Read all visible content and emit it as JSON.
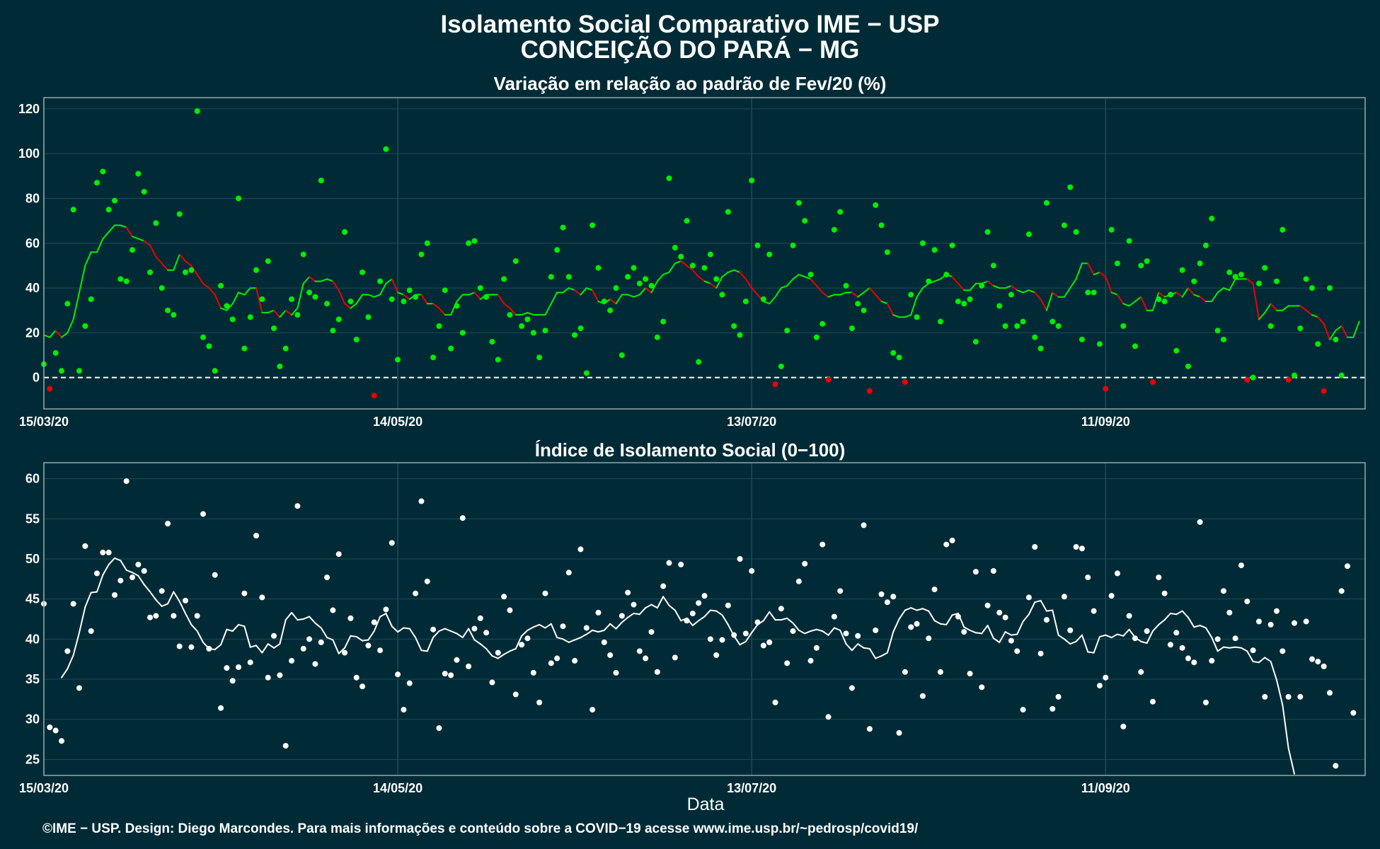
{
  "title": {
    "line1": "Isolamento Social Comparativo IME − USP",
    "line2": "CONCEIÇÃO DO PARÁ − MG"
  },
  "caption": "©IME − USP. Design: Diego Marcondes. Para mais informações e conteúdo sobre a COVID−19 acesse www.ime.usp.br/~pedrosp/covid19/",
  "colors": {
    "background": "#002b36",
    "grid": "#1e4a55",
    "panel_border": "#9aa6a9",
    "above": "#00ee00",
    "below": "#ee0000",
    "index": "#ffffff"
  },
  "chart_data": [
    {
      "type": "scatter",
      "title": "Variação em relação ao padrão de Fev/20 (%)",
      "xlabel": "",
      "ylabel": "",
      "x_ticks": [
        "15/03/20",
        "14/05/20",
        "13/07/20",
        "11/09/20"
      ],
      "x_tick_days": [
        0,
        60,
        120,
        180
      ],
      "x_range_days": [
        0,
        224
      ],
      "ylim": [
        -14,
        125
      ],
      "y_ticks": [
        0,
        20,
        40,
        60,
        80,
        100,
        120
      ],
      "grid": true,
      "reference_line": 0,
      "legend": "none",
      "series": [
        {
          "style": "points, green when positive and red when negative",
          "values": [
            6,
            -5,
            11,
            3,
            33,
            75,
            3,
            23,
            35,
            87,
            92,
            75,
            79,
            44,
            43,
            57,
            91,
            83,
            47,
            69,
            40,
            30,
            28,
            73,
            47,
            48,
            119,
            18,
            14,
            3,
            41,
            32,
            26,
            80,
            13,
            27,
            48,
            35,
            52,
            22,
            5,
            13,
            35,
            28,
            55,
            38,
            36,
            88,
            33,
            21,
            26,
            65,
            34,
            17,
            47,
            27,
            -8,
            43,
            102,
            35,
            8,
            34,
            39,
            36,
            55,
            60,
            9,
            23,
            39,
            13,
            32,
            20,
            60,
            61,
            40,
            36,
            16,
            8,
            44,
            28,
            52,
            23,
            26,
            20,
            9,
            21,
            45,
            57,
            67,
            45,
            19,
            22,
            2,
            68,
            49,
            34,
            30,
            40,
            10,
            45,
            49,
            42,
            44,
            41,
            18,
            25,
            89,
            58,
            54,
            70,
            50,
            7,
            49,
            55,
            44,
            37,
            74,
            23,
            19,
            34,
            88,
            59,
            35,
            55,
            -3,
            5,
            21,
            59,
            78,
            70,
            46,
            18,
            24,
            -1,
            66,
            74,
            41,
            22,
            33,
            30,
            -6,
            77,
            68,
            56,
            11,
            9,
            -2,
            37,
            27,
            60,
            43,
            57,
            25,
            46,
            59,
            34,
            33,
            35,
            16,
            41,
            65,
            50,
            32,
            23,
            37,
            23,
            25,
            64,
            18,
            13,
            78,
            25,
            23,
            68,
            85,
            65,
            17,
            38,
            38,
            15,
            -5,
            66,
            51,
            23,
            61,
            14,
            50,
            52,
            -2,
            35,
            34,
            37,
            12,
            48,
            5,
            43,
            51,
            59,
            71,
            21,
            17,
            47,
            45,
            46,
            -1,
            0,
            42,
            49,
            23,
            43,
            66,
            -1,
            1,
            22,
            44,
            40,
            15,
            -6,
            40,
            17,
            1
          ]
        },
        {
          "style": "7-day moving average line",
          "values": [
            19,
            18,
            21,
            18,
            20,
            26,
            38,
            50,
            56,
            56,
            62,
            65,
            68,
            68,
            67,
            63,
            62,
            61,
            59,
            54,
            51,
            48,
            48,
            55,
            52,
            50,
            46,
            42,
            40,
            37,
            31,
            30,
            33,
            38,
            37,
            40,
            40,
            29,
            29,
            30,
            27,
            30,
            28,
            31,
            42,
            45,
            43,
            43,
            44,
            43,
            39,
            33,
            31,
            33,
            37,
            37,
            36,
            37,
            42,
            44,
            38,
            37,
            35,
            37,
            37,
            33,
            33,
            31,
            28,
            28,
            34,
            37,
            37,
            38,
            35,
            37,
            37,
            37,
            33,
            31,
            28,
            28,
            29,
            28,
            28,
            28,
            33,
            38,
            38,
            40,
            39,
            37,
            40,
            39,
            34,
            33,
            35,
            33,
            37,
            37,
            36,
            37,
            40,
            38,
            43,
            46,
            47,
            51,
            52,
            50,
            48,
            45,
            43,
            42,
            40,
            45,
            47,
            48,
            47,
            44,
            40,
            37,
            34,
            33,
            36,
            40,
            41,
            44,
            46,
            45,
            44,
            41,
            38,
            36,
            37,
            37,
            38,
            38,
            36,
            38,
            40,
            37,
            34,
            33,
            28,
            27,
            27,
            28,
            36,
            40,
            42,
            43,
            44,
            46,
            45,
            42,
            39,
            39,
            42,
            42,
            43,
            41,
            40,
            40,
            41,
            39,
            38,
            39,
            38,
            35,
            30,
            38,
            36,
            36,
            40,
            44,
            51,
            51,
            46,
            47,
            45,
            38,
            37,
            33,
            32,
            34,
            36,
            30,
            30,
            38,
            36,
            37,
            38,
            36,
            40,
            37,
            36,
            34,
            34,
            38,
            40,
            39,
            44,
            44,
            44,
            42,
            26,
            29,
            33,
            30,
            30,
            32,
            32,
            32,
            30,
            28,
            27,
            24,
            17,
            21,
            23,
            18,
            18,
            25
          ]
        }
      ]
    },
    {
      "type": "scatter",
      "title": "Índice de Isolamento Social (0−100)",
      "xlabel": "Data",
      "ylabel": "",
      "x_ticks": [
        "15/03/20",
        "14/05/20",
        "13/07/20",
        "11/09/20"
      ],
      "x_tick_days": [
        0,
        60,
        120,
        180
      ],
      "x_range_days": [
        0,
        224
      ],
      "ylim": [
        23,
        62
      ],
      "y_ticks": [
        25,
        30,
        35,
        40,
        45,
        50,
        55,
        60
      ],
      "grid": true,
      "legend": "none",
      "series": [
        {
          "style": "points",
          "values": [
            44.4,
            29,
            28.6,
            27.3,
            38.5,
            44.4,
            33.9,
            51.6,
            41,
            48.2,
            50.8,
            50.8,
            45.5,
            47.3,
            59.7,
            47.7,
            49.3,
            48.5,
            42.7,
            42.9,
            46,
            54.4,
            42.9,
            39.1,
            44.8,
            39,
            42.9,
            55.6,
            38.8,
            48,
            31.4,
            36.4,
            34.8,
            36.5,
            45.7,
            37.1,
            52.9,
            45.2,
            35.2,
            40.4,
            35.5,
            26.7,
            37.3,
            56.6,
            38.8,
            40,
            36.9,
            39.6,
            47.7,
            43.6,
            50.6,
            38.3,
            42.6,
            35.2,
            34.1,
            39.2,
            42.1,
            38.6,
            43.7,
            52,
            35.6,
            31.2,
            34.5,
            45.7,
            57.2,
            47.2,
            41.2,
            28.9,
            35.7,
            35.5,
            37.4,
            55.1,
            36.6,
            41.3,
            42.6,
            40.8,
            34.6,
            38.3,
            45.3,
            43.6,
            33.1,
            39.3,
            40.1,
            35.8,
            32.1,
            45.7,
            37,
            37.6,
            41.6,
            48.3,
            37.3,
            51.2,
            41.4,
            31.2,
            43.3,
            39.6,
            38,
            35.8,
            42.9,
            45.8,
            44.3,
            38.5,
            37.6,
            40.9,
            35.9,
            46.6,
            49.5,
            37.7,
            49.3,
            42.3,
            43.2,
            44.5,
            45.4,
            40,
            38,
            39.9,
            44.2,
            40.5,
            50,
            40.7,
            48.5,
            42.1,
            39.2,
            39.6,
            32.1,
            43.8,
            37,
            41,
            47.2,
            49.4,
            37.3,
            38.9,
            51.8,
            30.3,
            42.8,
            46,
            40.7,
            33.9,
            40.4,
            54.2,
            28.8,
            41.1,
            45.6,
            44.6,
            45.3,
            28.3,
            35.9,
            41.5,
            41.9,
            32.9,
            40.1,
            46.2,
            35.9,
            51.8,
            52.3,
            42.8,
            40.9,
            35.7,
            48.4,
            34,
            44.2,
            48.5,
            43.3,
            42.7,
            39.8,
            38.5,
            31.2,
            45.2,
            51.5,
            38.2,
            42.4,
            31.3,
            32.8,
            45.3,
            41.1,
            51.5,
            51.3,
            47.7,
            43.5,
            34.2,
            35.2,
            45.4,
            48.2,
            29.1,
            42.9,
            40.1,
            35.9,
            41,
            32.2,
            47.7,
            45.7,
            39.3,
            40.8,
            38.9,
            37.6,
            37.1,
            54.6,
            32.1,
            37.3,
            40,
            46,
            43.3,
            40.1,
            49.2,
            44.7,
            38.6,
            42.2,
            32.8,
            41.8,
            43.5,
            38.5,
            32.8,
            42,
            32.8,
            42.2,
            37.5,
            37.2,
            36.6,
            33.3,
            24.2,
            46,
            49.1,
            30.8
          ]
        },
        {
          "style": "7-day moving average line",
          "values": [
            null,
            null,
            null,
            35.2,
            36.3,
            38,
            40.8,
            44,
            45.8,
            45.9,
            48,
            49.3,
            50.1,
            49.8,
            48.6,
            48.3,
            47.9,
            46.8,
            45.9,
            44.9,
            44.1,
            44.4,
            45.9,
            44.7,
            43.2,
            41.8,
            41,
            39.6,
            38.8,
            38.7,
            39.3,
            41.2,
            41,
            41.8,
            41.6,
            39,
            39.2,
            38.3,
            39.4,
            38.9,
            39.4,
            42.4,
            43.3,
            42.4,
            42.5,
            42.8,
            42,
            41.4,
            40.2,
            39.9,
            38.2,
            38.9,
            40.4,
            40.3,
            39.8,
            39.9,
            41,
            42.8,
            43.2,
            41.6,
            40.9,
            41.4,
            41.3,
            40.2,
            38.6,
            38.5,
            40.2,
            41,
            41.3,
            41,
            40.7,
            40.2,
            41.3,
            39.9,
            39.4,
            38.8,
            37.9,
            37.6,
            38.1,
            38.5,
            38.8,
            40.4,
            41.1,
            41.5,
            41.8,
            41.4,
            41.9,
            40.2,
            40,
            39.6,
            39.9,
            40.2,
            40.6,
            41.1,
            40.9,
            41.1,
            41.9,
            41.3,
            42.1,
            42.7,
            43.2,
            43.1,
            43.9,
            44.3,
            43.9,
            45.3,
            44.2,
            43.6,
            42.3,
            42.6,
            41.7,
            42.3,
            42.8,
            43.6,
            43.5,
            43,
            41.8,
            40.4,
            39.3,
            39.7,
            40.8,
            41.8,
            42.3,
            43.4,
            42.4,
            42.4,
            42.6,
            42,
            41.1,
            40.7,
            41,
            41.2,
            41,
            40.5,
            41.4,
            41.1,
            39.4,
            38.6,
            39.4,
            38.9,
            38.8,
            37.6,
            37.9,
            38.3,
            40.9,
            42.5,
            43.6,
            43.9,
            43.6,
            43.8,
            43.5,
            42.3,
            41.9,
            41.8,
            43,
            43.2,
            41.5,
            41.1,
            40.8,
            40.7,
            41.7,
            40.1,
            39.6,
            40.9,
            40.5,
            40.6,
            42.2,
            43.1,
            44.6,
            44.8,
            43.5,
            43.6,
            40.5,
            40,
            39.4,
            39.7,
            40.5,
            38.4,
            38.3,
            40.3,
            40.5,
            40.2,
            40.6,
            40.4,
            41.2,
            40.2,
            39.7,
            39.5,
            41,
            41.8,
            42.4,
            43.2,
            43.1,
            43.5,
            42.7,
            41.5,
            41.7,
            41.4,
            40.2,
            38.5,
            39,
            38.9,
            39,
            38.9,
            38.5,
            37.2,
            37.1,
            37.7,
            37.2,
            34.9,
            31.8,
            26.4,
            23.2
          ]
        }
      ]
    }
  ]
}
